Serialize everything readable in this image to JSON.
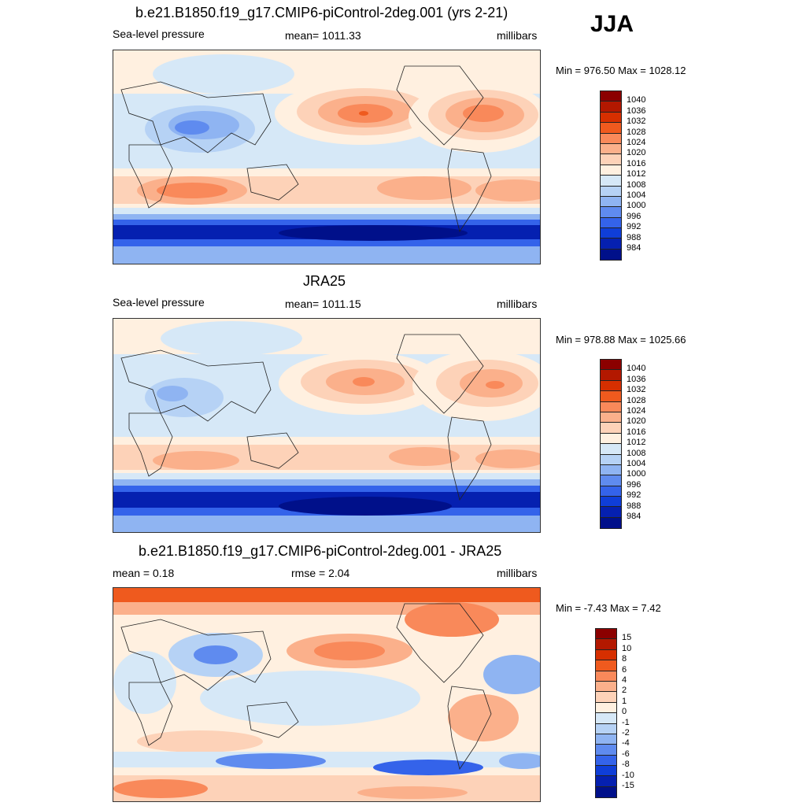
{
  "season": "JJA",
  "panels": [
    {
      "title": "b.e21.B1850.f19_g17.CMIP6-piControl-2deg.001 (yrs 2-21)",
      "left_label": "Sea-level pressure",
      "center_label": "mean= 1011.33",
      "units": "millibars",
      "minmax": "Min = 976.50 Max = 1028.12"
    },
    {
      "title": "JRA25",
      "left_label": "Sea-level pressure",
      "center_label": "mean= 1011.15",
      "units": "millibars",
      "minmax": "Min = 978.88 Max = 1025.66"
    },
    {
      "title": "b.e21.B1850.f19_g17.CMIP6-piControl-2deg.001 - JRA25",
      "left_label": "mean =   0.18",
      "center_label": "rmse =   2.04",
      "units": "millibars",
      "minmax": "Min =  -7.43 Max =   7.42"
    }
  ],
  "colorbar_abs": {
    "labels": [
      "1040",
      "1036",
      "1032",
      "1028",
      "1024",
      "1020",
      "1016",
      "1012",
      "1008",
      "1004",
      "1000",
      "996",
      "992",
      "988",
      "984"
    ],
    "colors": [
      "#8b0000",
      "#b31800",
      "#d62f00",
      "#ef5a1e",
      "#f9895a",
      "#fbb08b",
      "#fdd2b8",
      "#fff0e0",
      "#d6e8f7",
      "#b6d2f5",
      "#8fb4f2",
      "#5f8bef",
      "#3463ea",
      "#0f3ed8",
      "#0520b0",
      "#00108a"
    ]
  },
  "colorbar_diff": {
    "labels": [
      "15",
      "10",
      "8",
      "6",
      "4",
      "2",
      "1",
      "0",
      "-1",
      "-2",
      "-4",
      "-6",
      "-8",
      "-10",
      "-15"
    ],
    "colors": [
      "#8b0000",
      "#b31800",
      "#d62f00",
      "#ef5a1e",
      "#f9895a",
      "#fbb08b",
      "#fdd2b8",
      "#fff0e0",
      "#d6e8f7",
      "#b6d2f5",
      "#8fb4f2",
      "#5f8bef",
      "#3463ea",
      "#0f3ed8",
      "#0520b0",
      "#00108a"
    ]
  }
}
